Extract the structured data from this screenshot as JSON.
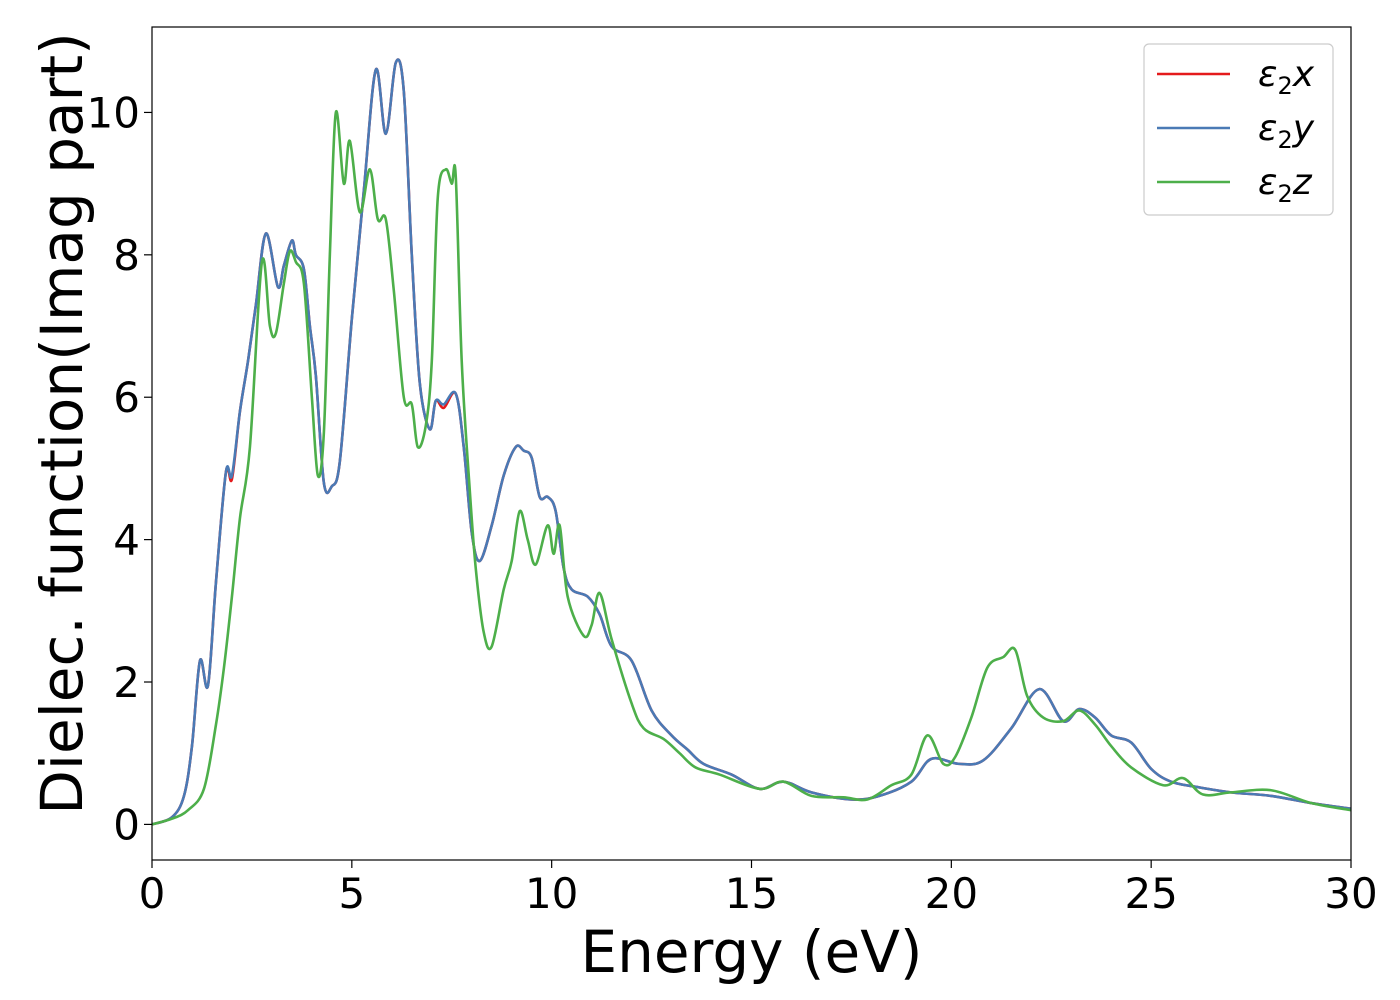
{
  "chart_data": {
    "type": "line",
    "title": "",
    "xlabel": "Energy (eV)",
    "ylabel": "Dielec. function(Imag part)",
    "xlim": [
      0,
      30
    ],
    "ylim": [
      -0.5,
      11.2
    ],
    "xticks": [
      0,
      5,
      10,
      15,
      20,
      25,
      30
    ],
    "yticks": [
      0,
      2,
      4,
      6,
      8,
      10
    ],
    "grid": false,
    "legend_position": "top-right",
    "series": [
      {
        "name": "ε2x",
        "legend_base": "ε",
        "legend_sub": "2",
        "legend_var": "x",
        "color": "#e41a1c",
        "points": [
          [
            0,
            0
          ],
          [
            0.5,
            0.1
          ],
          [
            0.8,
            0.4
          ],
          [
            1.0,
            1.1
          ],
          [
            1.2,
            2.3
          ],
          [
            1.4,
            1.95
          ],
          [
            1.6,
            3.4
          ],
          [
            1.85,
            4.95
          ],
          [
            2.0,
            4.85
          ],
          [
            2.2,
            5.8
          ],
          [
            2.4,
            6.5
          ],
          [
            2.6,
            7.3
          ],
          [
            2.85,
            8.3
          ],
          [
            3.15,
            7.55
          ],
          [
            3.3,
            7.85
          ],
          [
            3.5,
            8.2
          ],
          [
            3.6,
            8.0
          ],
          [
            3.8,
            7.8
          ],
          [
            3.95,
            7.0
          ],
          [
            4.1,
            6.3
          ],
          [
            4.3,
            4.8
          ],
          [
            4.5,
            4.75
          ],
          [
            4.7,
            5.1
          ],
          [
            5.0,
            7.1
          ],
          [
            5.3,
            8.9
          ],
          [
            5.6,
            10.6
          ],
          [
            5.85,
            9.7
          ],
          [
            6.1,
            10.7
          ],
          [
            6.3,
            10.3
          ],
          [
            6.5,
            8.0
          ],
          [
            6.7,
            6.2
          ],
          [
            6.95,
            5.55
          ],
          [
            7.1,
            5.95
          ],
          [
            7.3,
            5.85
          ],
          [
            7.6,
            6.05
          ],
          [
            7.8,
            5.3
          ],
          [
            8.0,
            4.1
          ],
          [
            8.2,
            3.7
          ],
          [
            8.5,
            4.2
          ],
          [
            8.8,
            4.9
          ],
          [
            9.1,
            5.3
          ],
          [
            9.3,
            5.25
          ],
          [
            9.5,
            5.15
          ],
          [
            9.7,
            4.6
          ],
          [
            9.9,
            4.6
          ],
          [
            10.1,
            4.4
          ],
          [
            10.3,
            3.6
          ],
          [
            10.5,
            3.3
          ],
          [
            10.9,
            3.2
          ],
          [
            11.2,
            2.95
          ],
          [
            11.5,
            2.5
          ],
          [
            12.0,
            2.3
          ],
          [
            12.5,
            1.6
          ],
          [
            13.0,
            1.25
          ],
          [
            13.4,
            1.05
          ],
          [
            13.8,
            0.85
          ],
          [
            14.5,
            0.7
          ],
          [
            15.2,
            0.5
          ],
          [
            15.8,
            0.6
          ],
          [
            16.5,
            0.45
          ],
          [
            17.5,
            0.35
          ],
          [
            18.2,
            0.4
          ],
          [
            19.0,
            0.6
          ],
          [
            19.5,
            0.92
          ],
          [
            20.2,
            0.85
          ],
          [
            20.8,
            0.9
          ],
          [
            21.5,
            1.35
          ],
          [
            22.2,
            1.9
          ],
          [
            22.8,
            1.45
          ],
          [
            23.2,
            1.62
          ],
          [
            23.6,
            1.5
          ],
          [
            24.0,
            1.25
          ],
          [
            24.5,
            1.15
          ],
          [
            25.0,
            0.78
          ],
          [
            25.5,
            0.6
          ],
          [
            26.2,
            0.52
          ],
          [
            27.0,
            0.45
          ],
          [
            28.0,
            0.4
          ],
          [
            29.0,
            0.3
          ],
          [
            30.0,
            0.22
          ]
        ]
      },
      {
        "name": "ε2y",
        "legend_base": "ε",
        "legend_sub": "2",
        "legend_var": "y",
        "color": "#4a7ab5",
        "points": [
          [
            0,
            0
          ],
          [
            0.5,
            0.1
          ],
          [
            0.8,
            0.4
          ],
          [
            1.0,
            1.1
          ],
          [
            1.2,
            2.3
          ],
          [
            1.4,
            1.95
          ],
          [
            1.6,
            3.4
          ],
          [
            1.85,
            4.95
          ],
          [
            2.0,
            4.9
          ],
          [
            2.2,
            5.8
          ],
          [
            2.4,
            6.5
          ],
          [
            2.6,
            7.3
          ],
          [
            2.85,
            8.3
          ],
          [
            3.15,
            7.55
          ],
          [
            3.3,
            7.85
          ],
          [
            3.5,
            8.2
          ],
          [
            3.6,
            8.0
          ],
          [
            3.8,
            7.8
          ],
          [
            3.95,
            7.0
          ],
          [
            4.1,
            6.3
          ],
          [
            4.3,
            4.8
          ],
          [
            4.5,
            4.75
          ],
          [
            4.7,
            5.1
          ],
          [
            5.0,
            7.1
          ],
          [
            5.3,
            8.9
          ],
          [
            5.6,
            10.6
          ],
          [
            5.85,
            9.7
          ],
          [
            6.1,
            10.7
          ],
          [
            6.3,
            10.3
          ],
          [
            6.5,
            8.0
          ],
          [
            6.7,
            6.2
          ],
          [
            6.95,
            5.55
          ],
          [
            7.1,
            5.95
          ],
          [
            7.3,
            5.9
          ],
          [
            7.6,
            6.05
          ],
          [
            7.8,
            5.3
          ],
          [
            8.0,
            4.1
          ],
          [
            8.2,
            3.7
          ],
          [
            8.5,
            4.2
          ],
          [
            8.8,
            4.9
          ],
          [
            9.1,
            5.3
          ],
          [
            9.3,
            5.25
          ],
          [
            9.5,
            5.15
          ],
          [
            9.7,
            4.6
          ],
          [
            9.9,
            4.6
          ],
          [
            10.1,
            4.4
          ],
          [
            10.3,
            3.6
          ],
          [
            10.5,
            3.3
          ],
          [
            10.9,
            3.2
          ],
          [
            11.2,
            2.95
          ],
          [
            11.5,
            2.5
          ],
          [
            12.0,
            2.3
          ],
          [
            12.5,
            1.6
          ],
          [
            13.0,
            1.25
          ],
          [
            13.4,
            1.05
          ],
          [
            13.8,
            0.85
          ],
          [
            14.5,
            0.7
          ],
          [
            15.2,
            0.5
          ],
          [
            15.8,
            0.6
          ],
          [
            16.5,
            0.45
          ],
          [
            17.5,
            0.35
          ],
          [
            18.2,
            0.4
          ],
          [
            19.0,
            0.6
          ],
          [
            19.5,
            0.92
          ],
          [
            20.2,
            0.85
          ],
          [
            20.8,
            0.9
          ],
          [
            21.5,
            1.35
          ],
          [
            22.2,
            1.9
          ],
          [
            22.8,
            1.45
          ],
          [
            23.2,
            1.62
          ],
          [
            23.6,
            1.5
          ],
          [
            24.0,
            1.25
          ],
          [
            24.5,
            1.15
          ],
          [
            25.0,
            0.78
          ],
          [
            25.5,
            0.6
          ],
          [
            26.2,
            0.52
          ],
          [
            27.0,
            0.45
          ],
          [
            28.0,
            0.4
          ],
          [
            29.0,
            0.3
          ],
          [
            30.0,
            0.22
          ]
        ]
      },
      {
        "name": "ε2z",
        "legend_base": "ε",
        "legend_sub": "2",
        "legend_var": "z",
        "color": "#4daf4a",
        "points": [
          [
            0,
            0
          ],
          [
            0.5,
            0.08
          ],
          [
            0.9,
            0.2
          ],
          [
            1.3,
            0.5
          ],
          [
            1.6,
            1.4
          ],
          [
            1.8,
            2.2
          ],
          [
            2.0,
            3.2
          ],
          [
            2.2,
            4.3
          ],
          [
            2.45,
            5.3
          ],
          [
            2.75,
            7.9
          ],
          [
            2.95,
            7.0
          ],
          [
            3.1,
            6.9
          ],
          [
            3.3,
            7.6
          ],
          [
            3.45,
            8.05
          ],
          [
            3.6,
            7.9
          ],
          [
            3.8,
            7.6
          ],
          [
            4.0,
            6.0
          ],
          [
            4.15,
            4.9
          ],
          [
            4.3,
            5.5
          ],
          [
            4.45,
            8.0
          ],
          [
            4.6,
            10.0
          ],
          [
            4.8,
            9.0
          ],
          [
            4.95,
            9.6
          ],
          [
            5.2,
            8.6
          ],
          [
            5.45,
            9.2
          ],
          [
            5.65,
            8.5
          ],
          [
            5.85,
            8.5
          ],
          [
            6.05,
            7.5
          ],
          [
            6.3,
            6.0
          ],
          [
            6.5,
            5.9
          ],
          [
            6.65,
            5.3
          ],
          [
            6.85,
            5.6
          ],
          [
            7.0,
            6.5
          ],
          [
            7.15,
            8.8
          ],
          [
            7.35,
            9.2
          ],
          [
            7.5,
            9.0
          ],
          [
            7.6,
            9.1
          ],
          [
            7.75,
            6.5
          ],
          [
            7.95,
            4.7
          ],
          [
            8.1,
            3.6
          ],
          [
            8.3,
            2.7
          ],
          [
            8.5,
            2.5
          ],
          [
            8.8,
            3.3
          ],
          [
            9.0,
            3.7
          ],
          [
            9.2,
            4.4
          ],
          [
            9.4,
            4.0
          ],
          [
            9.6,
            3.65
          ],
          [
            9.9,
            4.2
          ],
          [
            10.05,
            3.8
          ],
          [
            10.2,
            4.2
          ],
          [
            10.4,
            3.2
          ],
          [
            10.8,
            2.65
          ],
          [
            11.0,
            2.8
          ],
          [
            11.2,
            3.25
          ],
          [
            11.5,
            2.6
          ],
          [
            12.0,
            1.7
          ],
          [
            12.3,
            1.35
          ],
          [
            12.8,
            1.2
          ],
          [
            13.2,
            1.0
          ],
          [
            13.6,
            0.8
          ],
          [
            14.2,
            0.7
          ],
          [
            15.2,
            0.5
          ],
          [
            15.8,
            0.6
          ],
          [
            16.5,
            0.4
          ],
          [
            17.3,
            0.38
          ],
          [
            17.9,
            0.35
          ],
          [
            18.5,
            0.55
          ],
          [
            19.0,
            0.7
          ],
          [
            19.4,
            1.25
          ],
          [
            19.8,
            0.85
          ],
          [
            20.1,
            0.95
          ],
          [
            20.5,
            1.5
          ],
          [
            20.9,
            2.2
          ],
          [
            21.3,
            2.35
          ],
          [
            21.6,
            2.45
          ],
          [
            21.9,
            1.8
          ],
          [
            22.3,
            1.5
          ],
          [
            22.8,
            1.45
          ],
          [
            23.2,
            1.6
          ],
          [
            23.6,
            1.4
          ],
          [
            24.0,
            1.1
          ],
          [
            24.5,
            0.8
          ],
          [
            25.3,
            0.55
          ],
          [
            25.8,
            0.65
          ],
          [
            26.3,
            0.42
          ],
          [
            27.0,
            0.45
          ],
          [
            28.0,
            0.48
          ],
          [
            29.0,
            0.3
          ],
          [
            30.0,
            0.2
          ]
        ]
      }
    ]
  }
}
